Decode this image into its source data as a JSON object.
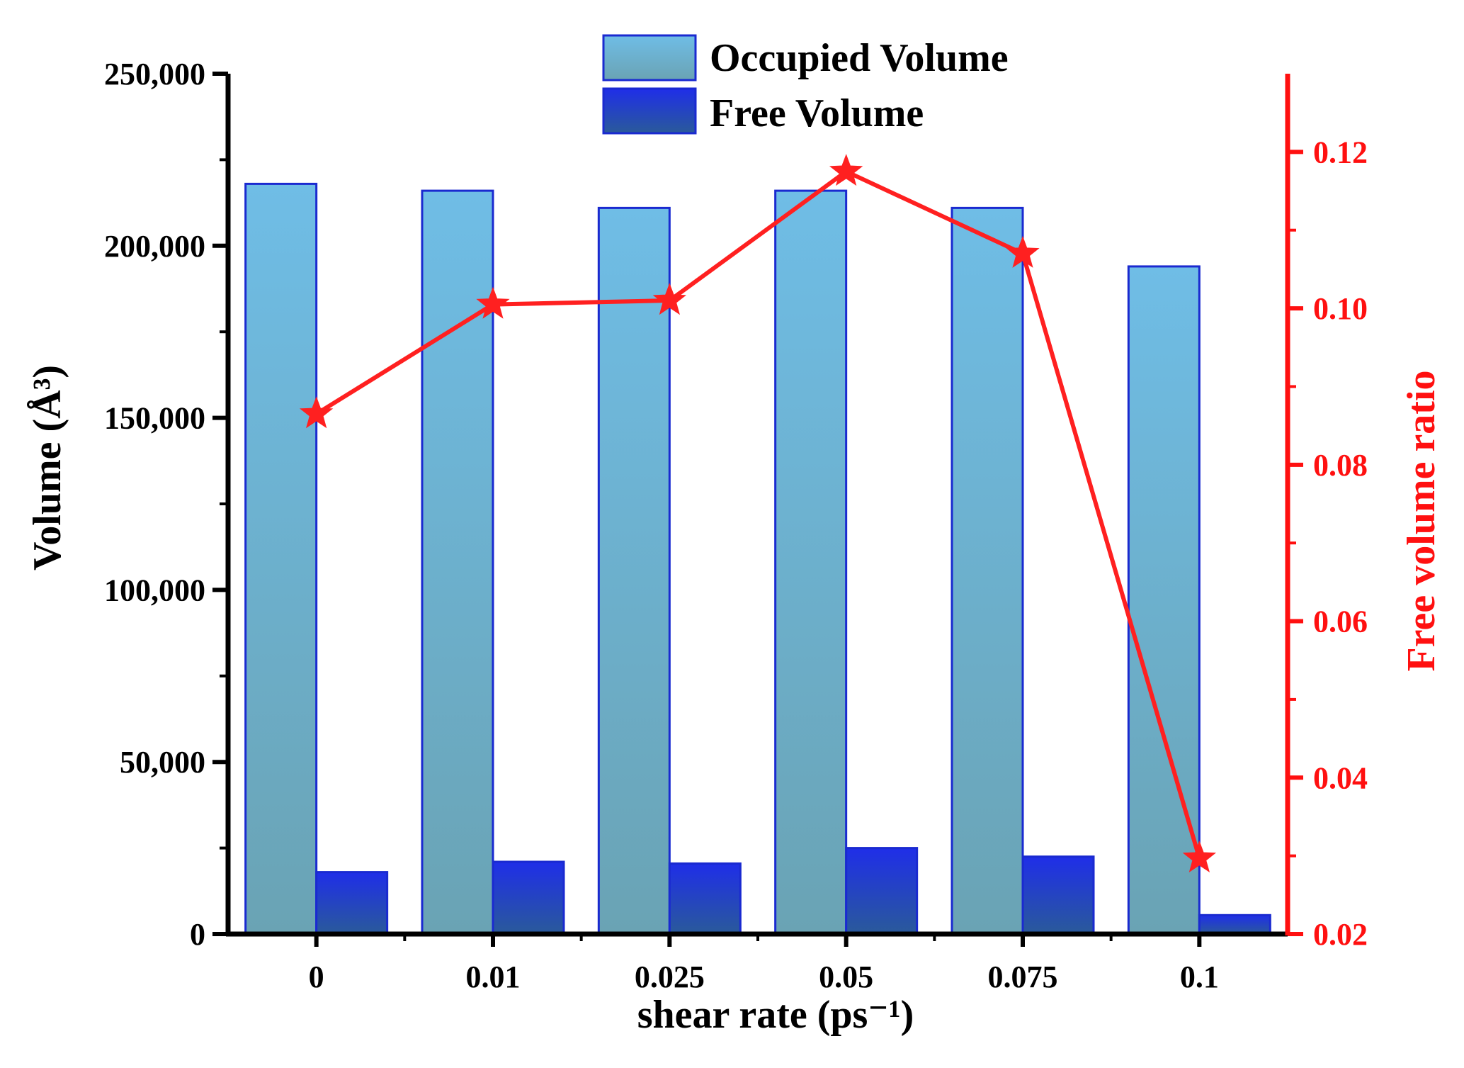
{
  "chart_data": {
    "type": "bar",
    "xlabel": "shear rate (ps⁻¹)",
    "ylabel": "Volume (Å³)",
    "y2label": "Free volume ratio",
    "categories": [
      "0",
      "0.01",
      "0.025",
      "0.05",
      "0.075",
      "0.1"
    ],
    "ylim": [
      0,
      250000
    ],
    "y2lim": [
      0.02,
      0.13
    ],
    "y_ticks": [
      0,
      50000,
      100000,
      150000,
      200000,
      250000
    ],
    "y_tick_labels": [
      "0",
      "50,000",
      "100,000",
      "150,000",
      "200,000",
      "250,000"
    ],
    "y2_ticks": [
      0.02,
      0.04,
      0.06,
      0.08,
      0.1,
      0.12
    ],
    "y2_tick_labels": [
      "0.02",
      "0.04",
      "0.06",
      "0.08",
      "0.10",
      "0.12"
    ],
    "series": [
      {
        "name": "Occupied Volume",
        "type": "bar",
        "axis": "left",
        "color": "#6eb5dc",
        "values": [
          218000,
          216000,
          211000,
          216000,
          211000,
          194000
        ]
      },
      {
        "name": "Free Volume",
        "type": "bar",
        "axis": "left",
        "color": "#1f3fcf",
        "values": [
          18000,
          21000,
          20500,
          25000,
          22500,
          5500
        ]
      },
      {
        "type": "line",
        "axis": "right",
        "color": "#ff2020",
        "marker": "star",
        "values": [
          0.0865,
          0.1005,
          0.101,
          0.1175,
          0.107,
          0.0297
        ]
      }
    ],
    "legend_position": "top-center",
    "grid": false
  }
}
